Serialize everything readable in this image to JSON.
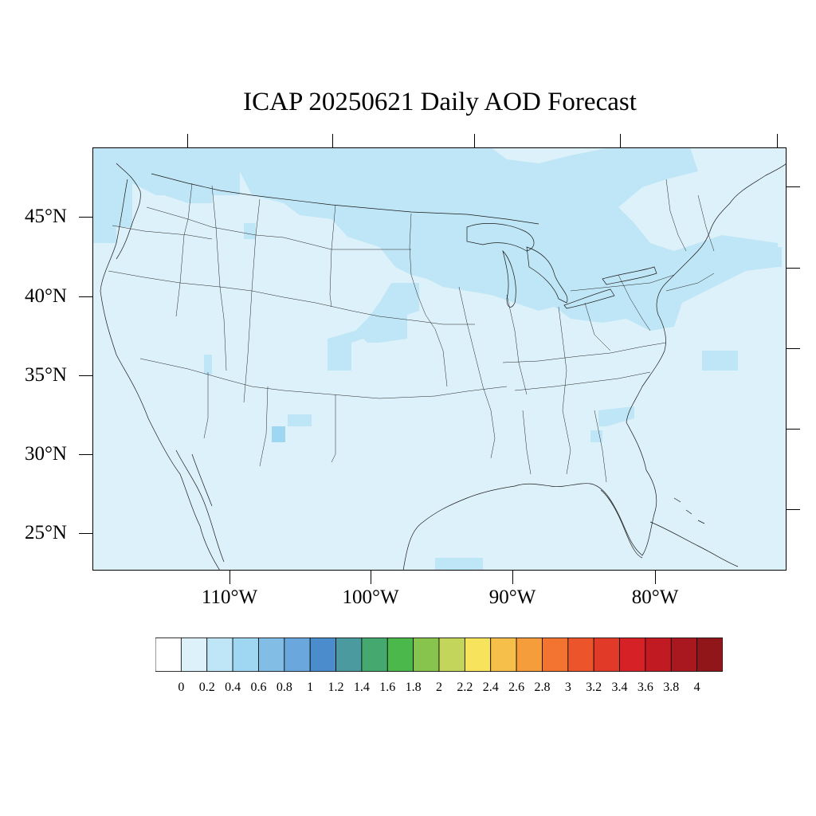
{
  "title": "ICAP 20250621 Daily AOD Forecast",
  "map": {
    "region": "Continental United States",
    "projection": "lambert-conformal",
    "lat_labels": [
      "45°N",
      "40°N",
      "35°N",
      "30°N",
      "25°N"
    ],
    "lon_labels": [
      "110°W",
      "100°W",
      "90°W",
      "80°W"
    ],
    "background_color": "#ddf1fb",
    "highlight_color": "#bfe6f6"
  },
  "colorbar": {
    "labels": [
      "0",
      "0.2",
      "0.4",
      "0.6",
      "0.8",
      "1",
      "1.2",
      "1.4",
      "1.6",
      "1.8",
      "2",
      "2.2",
      "2.4",
      "2.6",
      "2.8",
      "3",
      "3.2",
      "3.4",
      "3.6",
      "3.8",
      "4"
    ],
    "colors": [
      "#ffffff",
      "#ddf1fb",
      "#bfe6f6",
      "#9fd7f3",
      "#82bde6",
      "#69a7dc",
      "#4b8ccc",
      "#4a9a9f",
      "#45a86e",
      "#4ab84a",
      "#86c44e",
      "#c4d55b",
      "#f7e45c",
      "#f6bf4a",
      "#f59c3b",
      "#f27430",
      "#ec552c",
      "#e23a28",
      "#d62127",
      "#c21a23",
      "#a9181e",
      "#91161a"
    ]
  },
  "chart_data": {
    "type": "heatmap",
    "title": "ICAP 20250621 Daily AOD Forecast",
    "variable": "AOD",
    "x_ticks": [
      "110°W",
      "100°W",
      "90°W",
      "80°W"
    ],
    "y_ticks": [
      "45°N",
      "40°N",
      "35°N",
      "30°N",
      "25°N"
    ],
    "value_range": [
      0,
      4
    ],
    "level_step": 0.2,
    "typical_value_range": [
      0.2,
      0.4
    ],
    "max_region_value_range": [
      0.4,
      0.6
    ]
  }
}
